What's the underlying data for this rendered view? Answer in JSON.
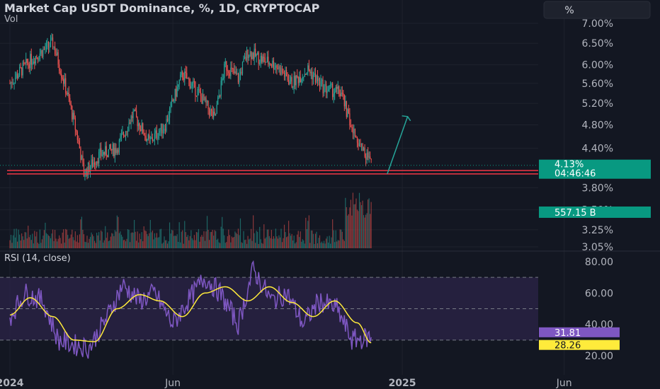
{
  "header": {
    "title": "Market Cap USDT Dominance, %, 1D, CRYPTOCAP",
    "vol_label": "Vol",
    "unit_button": "%"
  },
  "colors": {
    "background": "#131722",
    "up": "#26a69a",
    "down": "#ef5350",
    "support_line": "#f23645",
    "arrow": "#26a69a",
    "rsi_line": "#7e57c2",
    "rsi_ma": "#ffeb3b",
    "rsi_band": "#2a2346",
    "price_badge": "#089981"
  },
  "chart_data": [
    {
      "type": "candlestick",
      "title": "Market Cap USDT Dominance, %, 1D, CRYPTOCAP",
      "y_scale": "log",
      "y_ticks": [
        "7.00%",
        "6.50%",
        "6.00%",
        "5.60%",
        "5.20%",
        "4.80%",
        "4.40%",
        "4.13%",
        "3.80%",
        "3.50%",
        "3.25%",
        "3.05%"
      ],
      "x_ticks": [
        "2024",
        "Jun",
        "2025",
        "Jun"
      ],
      "price_path": {
        "dates": [
          "2024-01-01",
          "2024-01-20",
          "2024-02-10",
          "2024-03-05",
          "2024-03-10",
          "2024-03-25",
          "2024-04-10",
          "2024-04-25",
          "2024-05-10",
          "2024-05-25",
          "2024-06-10",
          "2024-06-25",
          "2024-07-10",
          "2024-07-20",
          "2024-08-01",
          "2024-08-10",
          "2024-08-25",
          "2024-09-05",
          "2024-09-20",
          "2024-10-05",
          "2024-10-20",
          "2024-11-05",
          "2024-11-15",
          "2024-11-25",
          "2024-12-03"
        ],
        "values": [
          5.6,
          6.1,
          6.5,
          4.5,
          4.0,
          4.3,
          4.4,
          5.0,
          4.5,
          4.8,
          5.8,
          5.4,
          4.9,
          6.0,
          5.7,
          6.3,
          6.1,
          6.0,
          5.6,
          5.9,
          5.5,
          5.4,
          4.7,
          4.4,
          4.13
        ]
      },
      "last_price": "4.13%",
      "countdown": "04:46:46",
      "support_levels": [
        4.0,
        4.05
      ],
      "projection_arrow": {
        "from": [
          "2024-12-18",
          4.0
        ],
        "to": [
          "2025-01-06",
          4.95
        ]
      },
      "volume": {
        "label": "Vol",
        "last_value": "557.15 B"
      }
    },
    {
      "type": "line",
      "title": "RSI (14, close)",
      "y_ticks": [
        "80.00",
        "60.00",
        "40.00",
        "20.00"
      ],
      "band": [
        30,
        70
      ],
      "series": [
        {
          "name": "RSI",
          "x": [
            "2024-01-01",
            "2024-01-15",
            "2024-02-01",
            "2024-02-15",
            "2024-03-01",
            "2024-03-15",
            "2024-04-01",
            "2024-04-15",
            "2024-05-01",
            "2024-05-15",
            "2024-06-01",
            "2024-06-15",
            "2024-07-01",
            "2024-07-15",
            "2024-08-01",
            "2024-08-15",
            "2024-09-01",
            "2024-09-15",
            "2024-10-01",
            "2024-10-15",
            "2024-11-01",
            "2024-11-15",
            "2024-12-03"
          ],
          "values": [
            45,
            60,
            55,
            30,
            27,
            25,
            45,
            65,
            55,
            60,
            40,
            55,
            70,
            60,
            40,
            75,
            55,
            60,
            40,
            55,
            50,
            30,
            31.81
          ]
        },
        {
          "name": "RSI-based MA",
          "x": [
            "2024-01-01",
            "2024-01-20",
            "2024-02-10",
            "2024-03-01",
            "2024-03-20",
            "2024-04-10",
            "2024-05-01",
            "2024-05-20",
            "2024-06-10",
            "2024-07-01",
            "2024-07-20",
            "2024-08-10",
            "2024-08-30",
            "2024-09-20",
            "2024-10-10",
            "2024-10-30",
            "2024-11-20",
            "2024-12-03"
          ],
          "values": [
            46,
            57,
            45,
            30,
            29,
            50,
            59,
            55,
            45,
            60,
            64,
            55,
            64,
            54,
            45,
            55,
            41,
            28.26
          ]
        }
      ],
      "last_values": {
        "rsi": "31.81",
        "ma": "28.26"
      }
    }
  ]
}
